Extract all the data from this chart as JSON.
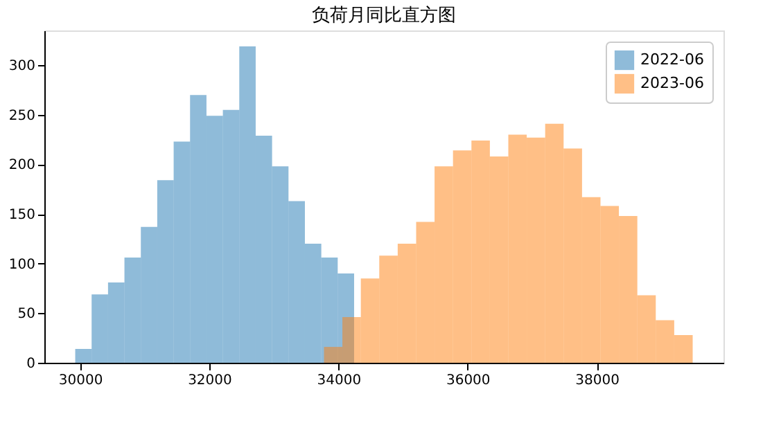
{
  "chart_data": {
    "type": "bar",
    "title": "负荷月同比直方图",
    "series": [
      {
        "name": "2022-06",
        "color": "#1f77b4",
        "x": [
          30052,
          30306,
          30560,
          30814,
          31068,
          31322,
          31576,
          31830,
          32084,
          32338,
          32592,
          32846,
          33100,
          33354,
          33608,
          33862,
          34116
        ],
        "values": [
          14,
          69,
          81,
          106,
          137,
          184,
          223,
          270,
          249,
          255,
          319,
          229,
          198,
          163,
          120,
          106,
          90
        ]
      },
      {
        "name": "2023-06",
        "color": "#ff7f0e",
        "x": [
          33919,
          34204,
          34490,
          34775,
          35061,
          35346,
          35631,
          35917,
          36202,
          36488,
          36773,
          37058,
          37344,
          37629,
          37915,
          38200,
          38485,
          38771,
          39056,
          39342
        ],
        "values": [
          16,
          46,
          85,
          108,
          120,
          142,
          198,
          214,
          224,
          208,
          230,
          227,
          241,
          216,
          167,
          158,
          148,
          68,
          43,
          28
        ]
      }
    ],
    "xlim": [
      29447,
      39962
    ],
    "xticks": [
      30000,
      32000,
      34000,
      36000,
      38000
    ],
    "ylim": [
      0,
      335
    ],
    "yticks": [
      0,
      50,
      100,
      150,
      200,
      250,
      300
    ],
    "grid": false,
    "legend": "top right"
  }
}
